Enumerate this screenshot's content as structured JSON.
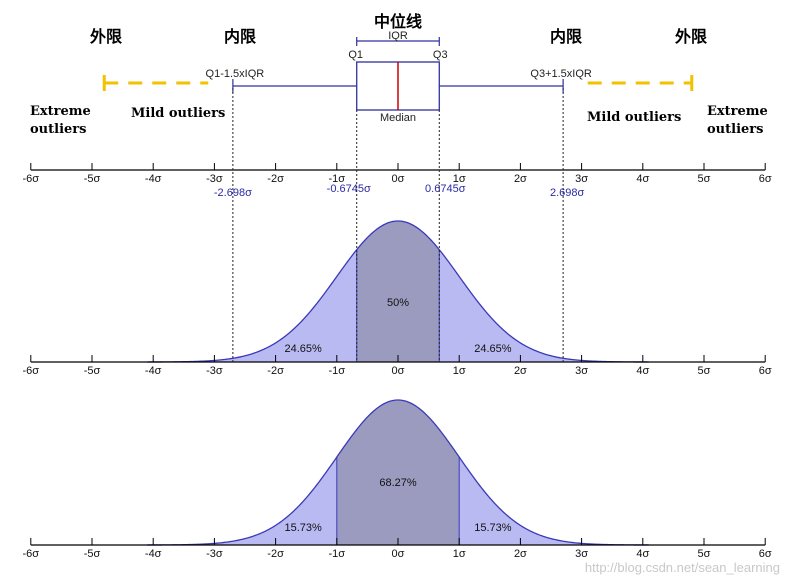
{
  "headings": {
    "median_cn": "中位线",
    "outer_left_cn": "外限",
    "inner_left_cn": "内限",
    "inner_right_cn": "内限",
    "outer_right_cn": "外限"
  },
  "boxplot": {
    "iqr_label": "IQR",
    "q1_label": "Q1",
    "q3_label": "Q3",
    "median_label": "Median",
    "lower_fence_label": "Q1-1.5xIQR",
    "upper_fence_label": "Q3+1.5xIQR",
    "q1": -0.6745,
    "q3": 0.6745,
    "median": 0,
    "lower_fence": -2.698,
    "upper_fence": 2.698,
    "colors": {
      "median_line": "#cc0000",
      "fence_line": "#3030a0",
      "outer_dash": "#f2c200"
    }
  },
  "side_labels": {
    "extreme_left_1": "Extreme",
    "extreme_left_2": "outliers",
    "mild_left": "Mild outliers",
    "mild_right": "Mild outliers",
    "extreme_right_1": "Extreme",
    "extreme_right_2": "outliers"
  },
  "axis": {
    "tick_values": [
      -6,
      -5,
      -4,
      -3,
      -2,
      -1,
      0,
      1,
      2,
      3,
      4,
      5,
      6
    ],
    "tick_labels": [
      "-6σ",
      "-5σ",
      "-4σ",
      "-3σ",
      "-2σ",
      "-1σ",
      "0σ",
      "1σ",
      "2σ",
      "3σ",
      "4σ",
      "5σ",
      "6σ"
    ],
    "range": [
      -6,
      6
    ]
  },
  "marker_labels": {
    "lower_fence": "-2.698σ",
    "q1": "-0.6745σ",
    "q3": "0.6745σ",
    "upper_fence": "2.698σ"
  },
  "panels": [
    {
      "name": "iqr",
      "inner_range": [
        -0.6745,
        0.6745
      ],
      "outer_range": [
        -2.698,
        2.698
      ],
      "center_pct": "50%",
      "left_pct": "24.65%",
      "right_pct": "24.65%"
    },
    {
      "name": "sigma",
      "inner_range": [
        -1,
        1
      ],
      "outer_range": [
        -3,
        3
      ],
      "center_pct": "68.27%",
      "left_pct": "15.73%",
      "right_pct": "15.73%"
    }
  ],
  "colors": {
    "curve_fill": "#babaf3",
    "inner_fill": "#9b9bc0",
    "curve_line": "#3a3ab8",
    "axis": "#000000"
  },
  "watermark": "http://blog.csdn.net/sean_learning"
}
